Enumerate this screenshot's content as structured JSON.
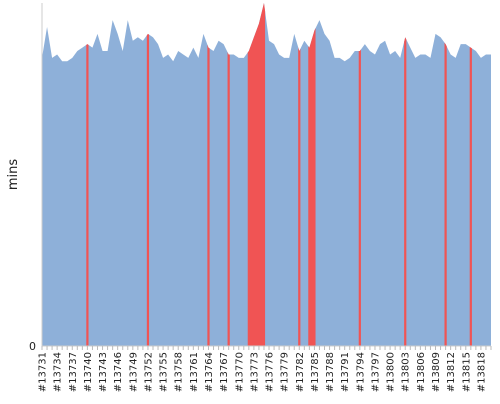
{
  "chart_data": {
    "type": "area",
    "title": "",
    "xlabel": "",
    "ylabel": "mins",
    "y_tick_labels": [
      "0"
    ],
    "ylim": [
      0,
      100
    ],
    "grid": false,
    "legend": "none",
    "x_tick_labels": [
      "#13731",
      "#13734",
      "#13737",
      "#13740",
      "#13743",
      "#13746",
      "#13749",
      "#13752",
      "#13755",
      "#13758",
      "#13761",
      "#13764",
      "#13767",
      "#13770",
      "#13773",
      "#13776",
      "#13779",
      "#13782",
      "#13785",
      "#13788",
      "#13791",
      "#13794",
      "#13797",
      "#13800",
      "#13803",
      "#13806",
      "#13809",
      "#13812",
      "#13815",
      "#13818"
    ],
    "x": [
      13731,
      13732,
      13733,
      13734,
      13735,
      13736,
      13737,
      13738,
      13739,
      13740,
      13741,
      13742,
      13743,
      13744,
      13745,
      13746,
      13747,
      13748,
      13749,
      13750,
      13751,
      13752,
      13753,
      13754,
      13755,
      13756,
      13757,
      13758,
      13759,
      13760,
      13761,
      13762,
      13763,
      13764,
      13765,
      13766,
      13767,
      13768,
      13769,
      13770,
      13771,
      13772,
      13773,
      13774,
      13775,
      13776,
      13777,
      13778,
      13779,
      13780,
      13781,
      13782,
      13783,
      13784,
      13785,
      13786,
      13787,
      13788,
      13789,
      13790,
      13791,
      13792,
      13793,
      13794,
      13795,
      13796,
      13797,
      13798,
      13799,
      13800,
      13801,
      13802,
      13803,
      13804,
      13805,
      13806,
      13807,
      13808,
      13809,
      13810,
      13811,
      13812,
      13813,
      13814,
      13815,
      13816,
      13817,
      13818,
      13819,
      13820
    ],
    "values": [
      84,
      93,
      84,
      85,
      83,
      83,
      84,
      86,
      87,
      88,
      87,
      91,
      86,
      86,
      95,
      91,
      86,
      95,
      89,
      90,
      89,
      91,
      90,
      88,
      84,
      85,
      83,
      86,
      85,
      84,
      87,
      84,
      91,
      87,
      86,
      89,
      88,
      85,
      85,
      84,
      84,
      86,
      90,
      94,
      100,
      89,
      88,
      85,
      84,
      84,
      91,
      86,
      89,
      87,
      92,
      95,
      91,
      89,
      84,
      84,
      83,
      84,
      86,
      86,
      88,
      86,
      85,
      88,
      89,
      85,
      86,
      84,
      90,
      87,
      84,
      85,
      85,
      84,
      91,
      90,
      88,
      85,
      84,
      88,
      88,
      87,
      86,
      84,
      85,
      85
    ],
    "series": [
      {
        "name": "",
        "color": "#8eb0d9"
      },
      {
        "name": "",
        "color": "#f05454",
        "highlight_x": [
          13740,
          13752,
          13764,
          13768,
          13772,
          13773,
          13774,
          13775,
          13782,
          13784,
          13785,
          13794,
          13803,
          13811,
          13816
        ]
      }
    ]
  }
}
